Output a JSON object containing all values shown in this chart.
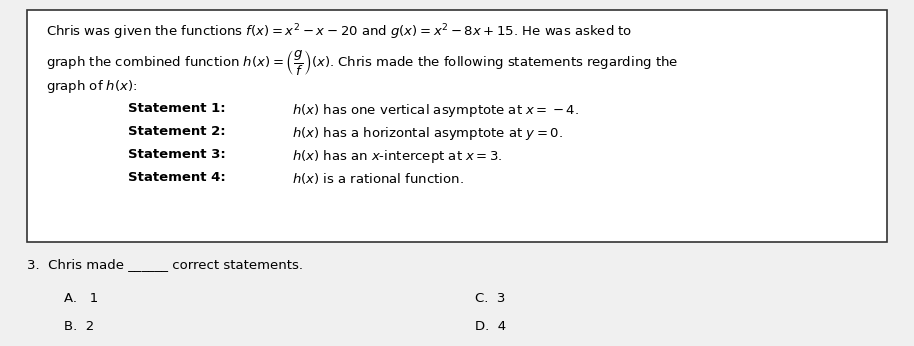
{
  "bg_color": "#f0f0f0",
  "box_bg": "#ffffff",
  "text_color": "#000000",
  "title_line1": "Chris was given the functions $f(x)=x^2-x-20$ and $g(x)=x^2-8x+15$. He was asked to",
  "title_line2": "graph the combined function $h(x)=\\left(\\dfrac{g}{f}\\right)(x)$. Chris made the following statements regarding the",
  "title_line3": "graph of $h(x)$:",
  "statements": [
    [
      "Statement 1:",
      "$h(x)$ has one vertical asymptote at $x=-4$."
    ],
    [
      "Statement 2:",
      "$h(x)$ has a horizontal asymptote at $y=0$."
    ],
    [
      "Statement 3:",
      "$h(x)$ has an $x$-intercept at $x=3$."
    ],
    [
      "Statement 4:",
      "$h(x)$ is a rational function."
    ]
  ],
  "question_line": "3.  Chris made ______ correct statements.",
  "choices": [
    [
      "A.   1",
      "C.  3"
    ],
    [
      "B.  2",
      "D.  4"
    ]
  ]
}
